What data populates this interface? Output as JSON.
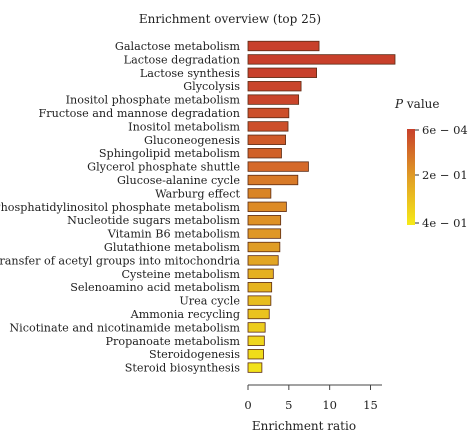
{
  "chart_data": {
    "type": "bar",
    "orientation": "horizontal",
    "title": "Enrichment overview (top 25)",
    "xlabel": "Enrichment ratio",
    "ylabel": "",
    "xlim": [
      0,
      18
    ],
    "xticks": [
      0,
      5,
      10,
      15
    ],
    "grid": false,
    "categories": [
      "Galactose metabolism",
      "Lactose degradation",
      "Lactose synthesis",
      "Glycolysis",
      "Inositol phosphate metabolism",
      "Fructose and mannose degradation",
      "Inositol metabolism",
      "Gluconeogenesis",
      "Sphingolipid metabolism",
      "Glycerol phosphate shuttle",
      "Glucose-alanine cycle",
      "Warburg effect",
      "Phosphatidylinositol phosphate metabolism",
      "Nucleotide sugars metabolism",
      "Vitamin B6 metabolism",
      "Glutathione metabolism",
      "Transfer of acetyl groups into mitochondria",
      "Cysteine metabolism",
      "Selenoamino acid metabolism",
      "Urea cycle",
      "Ammonia recycling",
      "Nicotinate and nicotinamide metabolism",
      "Propanoate metabolism",
      "Steroidogenesis",
      "Steroid biosynthesis"
    ],
    "values": [
      8.7,
      18.0,
      8.4,
      6.5,
      6.2,
      5.0,
      4.9,
      4.6,
      4.1,
      7.4,
      6.1,
      2.8,
      4.7,
      4.0,
      4.0,
      3.9,
      3.7,
      3.1,
      2.9,
      2.8,
      2.6,
      2.1,
      2.0,
      1.9,
      1.7
    ],
    "colors": [
      "#c8402b",
      "#c8402b",
      "#c8402b",
      "#c9452b",
      "#c9452b",
      "#cc4f2a",
      "#cc4f2a",
      "#cf5a29",
      "#d06028",
      "#d5692a",
      "#d87a28",
      "#d98426",
      "#dd8b26",
      "#de9126",
      "#df9726",
      "#e09d25",
      "#e2a524",
      "#e5b021",
      "#e6b41f",
      "#e8bd1f",
      "#eac31e",
      "#edcd1d",
      "#efd61c",
      "#f0dc1a",
      "#f2e21a"
    ],
    "legend": {
      "title_var": "P",
      "title_rest": " value",
      "ticks": [
        "6e − 04",
        "2e − 01",
        "4e − 01"
      ],
      "color_top": "#c8402b",
      "color_mid": "#e09d25",
      "color_bottom": "#f6ea18",
      "placement": "right"
    }
  }
}
